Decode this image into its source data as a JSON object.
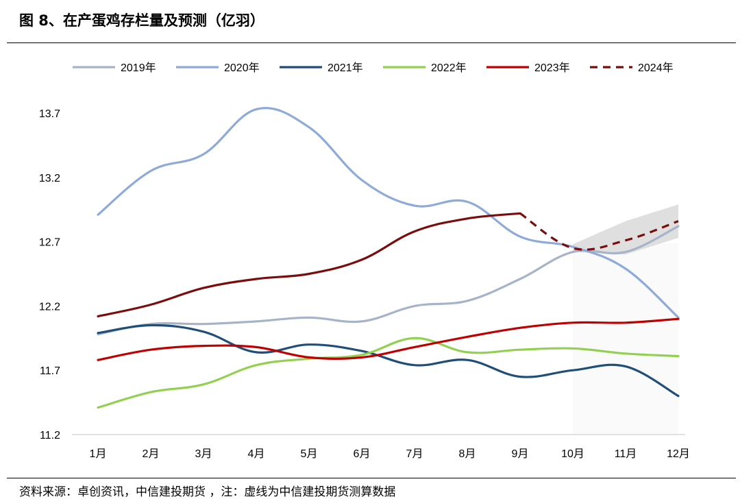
{
  "title": "图 8、在产蛋鸡存栏量及预测（亿羽）",
  "source": "资料来源：卓创资讯，中信建投期货 ，注：虚线为中信建投期货测算数据",
  "chart_data": {
    "type": "line",
    "categories": [
      "1月",
      "2月",
      "3月",
      "4月",
      "5月",
      "6月",
      "7月",
      "8月",
      "9月",
      "10月",
      "11月",
      "12月"
    ],
    "ylim": [
      11.2,
      13.7
    ],
    "yticks": [
      "11.2",
      "11.7",
      "12.2",
      "12.7",
      "13.2",
      "13.7"
    ],
    "legend_position": "top",
    "grid": false,
    "series": [
      {
        "name": "2019年",
        "color": "#a6b3c9",
        "dash": false,
        "values": [
          11.98,
          12.06,
          12.06,
          12.08,
          12.11,
          12.08,
          12.2,
          12.24,
          12.41,
          12.62,
          12.62,
          12.82
        ]
      },
      {
        "name": "2020年",
        "color": "#8eaadb",
        "dash": false,
        "values": [
          12.91,
          13.25,
          13.38,
          13.73,
          13.59,
          13.18,
          12.98,
          13.01,
          12.74,
          12.66,
          12.49,
          12.11
        ]
      },
      {
        "name": "2021年",
        "color": "#1f4e79",
        "dash": false,
        "values": [
          11.99,
          12.05,
          12.0,
          11.84,
          11.9,
          11.85,
          11.74,
          11.78,
          11.65,
          11.7,
          11.73,
          11.5
        ]
      },
      {
        "name": "2022年",
        "color": "#92d050",
        "dash": false,
        "values": [
          11.41,
          11.53,
          11.59,
          11.74,
          11.79,
          11.82,
          11.95,
          11.84,
          11.86,
          11.87,
          11.83,
          11.81
        ]
      },
      {
        "name": "2023年",
        "color": "#c00000",
        "dash": false,
        "values": [
          11.78,
          11.86,
          11.89,
          11.88,
          11.8,
          11.8,
          11.88,
          11.96,
          12.03,
          12.07,
          12.07,
          12.1
        ]
      },
      {
        "name": "2024年",
        "color": "#7b0c0c",
        "dash": false,
        "values": [
          12.12,
          12.21,
          12.34,
          12.41,
          12.45,
          12.56,
          12.78,
          12.88,
          12.92,
          null,
          null,
          null
        ]
      },
      {
        "name": "2024年",
        "color": "#7b0c0c",
        "dash": true,
        "legend": true,
        "values": [
          null,
          null,
          null,
          null,
          null,
          null,
          null,
          null,
          12.92,
          12.65,
          12.71,
          12.86
        ]
      }
    ],
    "forecast_band": {
      "color": "#d9d9d9",
      "start_index": 9,
      "upper": [
        12.68,
        12.86,
        12.99
      ],
      "lower": [
        12.62,
        12.6,
        12.73
      ]
    }
  }
}
